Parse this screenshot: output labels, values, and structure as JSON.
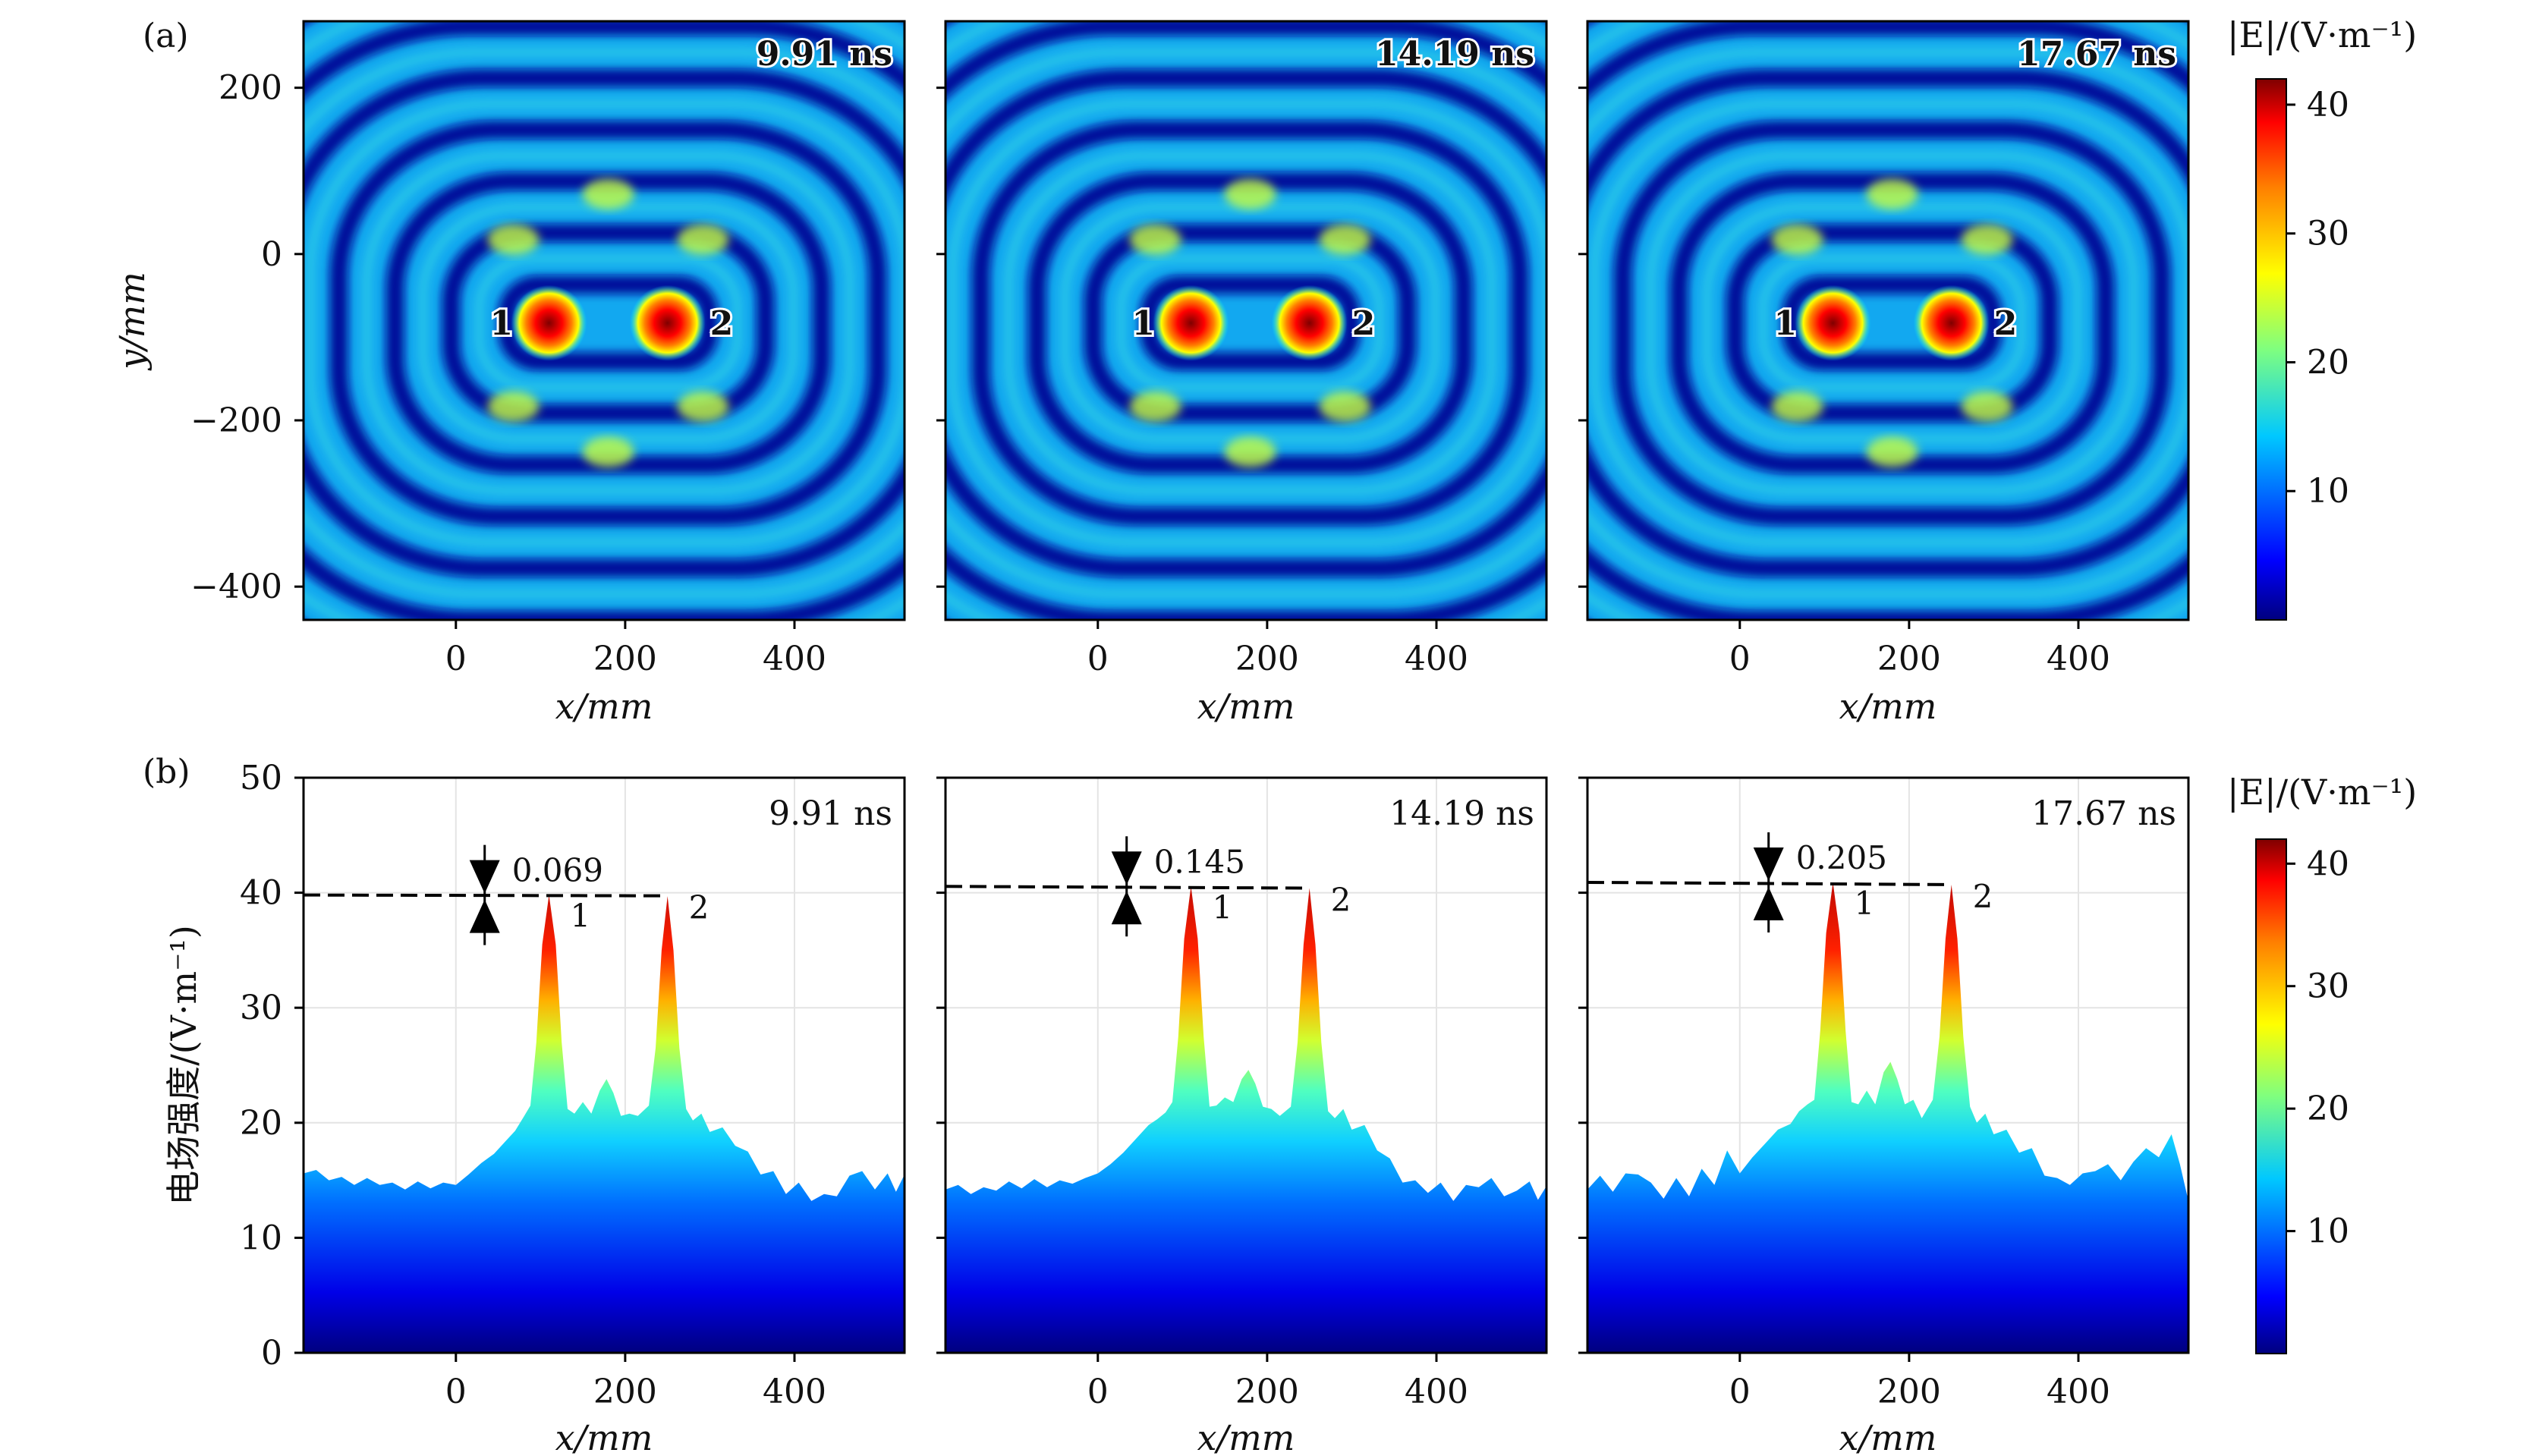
{
  "figure": {
    "panel_a_tag": "(a)",
    "panel_b_tag": "(b)",
    "colorbar_title": "|E|/(V·m⁻¹)",
    "colormap": [
      "#00007f",
      "#0000ff",
      "#007fff",
      "#00ffff",
      "#7fff7f",
      "#ffff00",
      "#ff7f00",
      "#ff0000",
      "#7f0000"
    ],
    "colorbar_ticks": [
      "10",
      "20",
      "30",
      "40"
    ]
  },
  "chart_data": [
    {
      "type": "heatmap",
      "panel": "a",
      "time": "9.91 ns",
      "xlabel": "x/mm",
      "ylabel": "y/mm",
      "xlim": [
        -180,
        530
      ],
      "ylim": [
        -440,
        280
      ],
      "x_ticks": [
        "0",
        "200",
        "400"
      ],
      "y_ticks": [
        "200",
        "0",
        "−200",
        "−400"
      ],
      "sources": [
        {
          "label": "1",
          "x": 110,
          "y": -83
        },
        {
          "label": "2",
          "x": 250,
          "y": -83
        }
      ],
      "colorbar_range": [
        0,
        42
      ]
    },
    {
      "type": "heatmap",
      "panel": "a",
      "time": "14.19 ns",
      "xlabel": "x/mm",
      "xlim": [
        -180,
        530
      ],
      "ylim": [
        -440,
        280
      ],
      "x_ticks": [
        "0",
        "200",
        "400"
      ],
      "sources": [
        {
          "label": "1",
          "x": 110,
          "y": -83
        },
        {
          "label": "2",
          "x": 250,
          "y": -83
        }
      ],
      "colorbar_range": [
        0,
        42
      ]
    },
    {
      "type": "heatmap",
      "panel": "a",
      "time": "17.67 ns",
      "xlabel": "x/mm",
      "xlim": [
        -180,
        530
      ],
      "ylim": [
        -440,
        280
      ],
      "x_ticks": [
        "0",
        "200",
        "400"
      ],
      "sources": [
        {
          "label": "1",
          "x": 110,
          "y": -83
        },
        {
          "label": "2",
          "x": 250,
          "y": -83
        }
      ],
      "colorbar_range": [
        0,
        42
      ]
    },
    {
      "type": "area",
      "panel": "b",
      "time": "9.91 ns",
      "xlabel": "x/mm",
      "ylabel": "电场强度/(V·m⁻¹)",
      "xlim": [
        -180,
        530
      ],
      "ylim": [
        0,
        50
      ],
      "x_ticks": [
        "0",
        "200",
        "400"
      ],
      "y_ticks": [
        "50",
        "40",
        "30",
        "20",
        "10",
        "0"
      ],
      "peaks": [
        {
          "label": "1",
          "x": 110,
          "y": 39.8
        },
        {
          "label": "2",
          "x": 250,
          "y": 39.73
        }
      ],
      "delta": "0.069",
      "reference_y": 39.8,
      "x": [
        -180,
        -165,
        -150,
        -135,
        -120,
        -105,
        -90,
        -75,
        -60,
        -45,
        -30,
        -15,
        0,
        15,
        30,
        45,
        60,
        70,
        80,
        88,
        95,
        102,
        110,
        118,
        125,
        132,
        140,
        150,
        160,
        170,
        178,
        186,
        195,
        205,
        215,
        228,
        236,
        243,
        250,
        257,
        264,
        272,
        280,
        290,
        300,
        315,
        330,
        345,
        360,
        375,
        390,
        405,
        420,
        435,
        450,
        465,
        480,
        495,
        510,
        520,
        530
      ],
      "y": [
        15.6,
        15.9,
        15.0,
        15.3,
        14.6,
        15.2,
        14.6,
        14.8,
        14.2,
        14.9,
        14.3,
        14.8,
        14.6,
        15.5,
        16.5,
        17.3,
        18.5,
        19.3,
        20.5,
        21.5,
        27.0,
        35.5,
        39.8,
        35.5,
        27.0,
        21.2,
        20.8,
        21.8,
        20.8,
        22.8,
        23.8,
        22.6,
        20.6,
        20.8,
        20.6,
        21.5,
        26.5,
        35.0,
        39.7,
        35.0,
        26.5,
        21.2,
        20.2,
        20.8,
        19.2,
        19.6,
        18.0,
        17.5,
        15.5,
        15.8,
        13.8,
        14.8,
        13.2,
        13.8,
        13.6,
        15.4,
        15.8,
        14.2,
        15.6,
        14.0,
        15.5
      ]
    },
    {
      "type": "area",
      "panel": "b",
      "time": "14.19 ns",
      "xlabel": "x/mm",
      "xlim": [
        -180,
        530
      ],
      "ylim": [
        0,
        50
      ],
      "x_ticks": [
        "0",
        "200",
        "400"
      ],
      "peaks": [
        {
          "label": "1",
          "x": 110,
          "y": 40.55
        },
        {
          "label": "2",
          "x": 250,
          "y": 40.4
        }
      ],
      "delta": "0.145",
      "reference_y": 40.55,
      "x": [
        -180,
        -165,
        -150,
        -135,
        -120,
        -105,
        -90,
        -75,
        -60,
        -45,
        -30,
        -15,
        0,
        15,
        30,
        45,
        60,
        70,
        80,
        88,
        95,
        102,
        110,
        118,
        125,
        132,
        140,
        150,
        160,
        170,
        178,
        186,
        195,
        205,
        215,
        228,
        236,
        243,
        250,
        257,
        264,
        272,
        280,
        290,
        300,
        315,
        330,
        345,
        360,
        375,
        390,
        405,
        420,
        435,
        450,
        465,
        480,
        495,
        510,
        520,
        530
      ],
      "y": [
        14.2,
        14.6,
        13.8,
        14.4,
        14.1,
        14.9,
        14.3,
        15.1,
        14.4,
        15.0,
        14.7,
        15.2,
        15.6,
        16.4,
        17.4,
        18.6,
        19.8,
        20.3,
        20.9,
        21.8,
        27.5,
        36.0,
        40.55,
        36.0,
        27.5,
        21.4,
        21.5,
        22.2,
        21.8,
        23.8,
        24.6,
        23.4,
        21.4,
        21.2,
        20.6,
        21.4,
        27.0,
        35.5,
        40.4,
        35.5,
        27.0,
        21.0,
        20.4,
        21.2,
        19.4,
        19.8,
        17.6,
        16.9,
        14.8,
        15.0,
        13.9,
        14.8,
        13.2,
        14.6,
        14.4,
        15.2,
        13.6,
        14.1,
        14.9,
        13.3,
        14.5
      ]
    },
    {
      "type": "area",
      "panel": "b",
      "time": "17.67 ns",
      "xlabel": "x/mm",
      "xlim": [
        -180,
        530
      ],
      "ylim": [
        0,
        50
      ],
      "x_ticks": [
        "0",
        "200",
        "400"
      ],
      "peaks": [
        {
          "label": "1",
          "x": 110,
          "y": 40.9
        },
        {
          "label": "2",
          "x": 250,
          "y": 40.7
        }
      ],
      "delta": "0.205",
      "reference_y": 40.9,
      "x": [
        -180,
        -165,
        -150,
        -135,
        -120,
        -105,
        -90,
        -75,
        -60,
        -45,
        -30,
        -15,
        0,
        15,
        30,
        45,
        60,
        70,
        80,
        88,
        95,
        102,
        110,
        118,
        125,
        132,
        140,
        150,
        160,
        170,
        178,
        186,
        195,
        205,
        215,
        228,
        236,
        243,
        250,
        257,
        264,
        272,
        280,
        290,
        300,
        315,
        330,
        345,
        360,
        375,
        390,
        405,
        420,
        435,
        450,
        465,
        480,
        495,
        510,
        520,
        530
      ],
      "y": [
        14.2,
        15.4,
        14.0,
        15.6,
        15.5,
        14.8,
        13.4,
        15.2,
        13.6,
        16.0,
        14.6,
        17.6,
        15.6,
        17.0,
        18.2,
        19.4,
        19.9,
        21.0,
        21.6,
        22.0,
        28.0,
        36.5,
        40.9,
        36.5,
        28.0,
        21.8,
        21.6,
        22.8,
        21.6,
        24.4,
        25.3,
        23.8,
        21.6,
        22.0,
        20.4,
        22.0,
        27.5,
        36.0,
        40.7,
        36.0,
        27.5,
        21.4,
        20.0,
        20.8,
        19.0,
        19.4,
        17.4,
        17.8,
        15.4,
        15.2,
        14.6,
        15.6,
        15.8,
        16.4,
        15.0,
        16.6,
        17.8,
        17.0,
        19.0,
        16.4,
        13.2
      ]
    }
  ]
}
